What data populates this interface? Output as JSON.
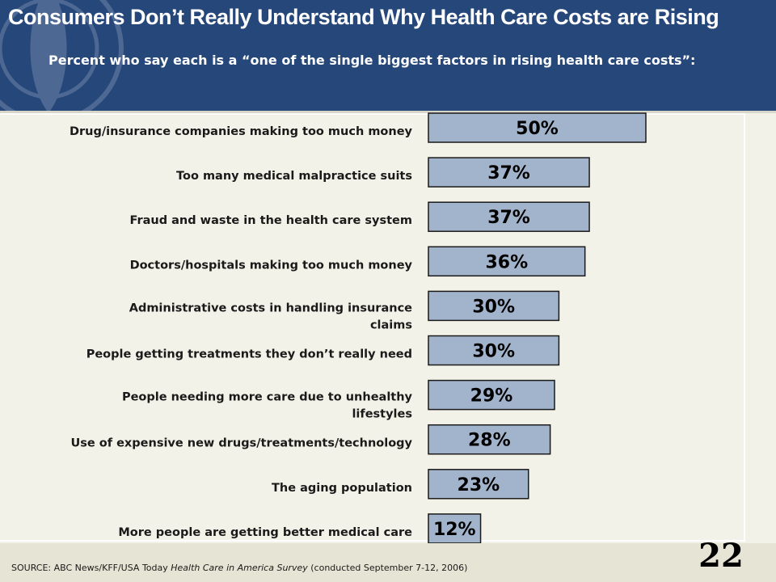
{
  "slide": {
    "title": "Consumers Don’t Really Understand Why Health Care Costs are Rising",
    "subtitle": "Percent who say each is a “one of the single biggest factors in rising health care costs”:",
    "source_prefix": "SOURCE:  ABC News/KFF/USA Today ",
    "source_italic": "Health Care in America Survey",
    "source_suffix": " (conducted  September  7-12, 2006)",
    "page_number": "22"
  },
  "colors": {
    "header": "#26477a",
    "background": "#f3f2e8",
    "bar_fill": "#a2b4cc",
    "bar_stroke": "#1a1a1a"
  },
  "chart_data": {
    "type": "bar",
    "orientation": "horizontal",
    "title": "",
    "xlabel": "",
    "ylabel": "",
    "xlim": [
      0,
      100
    ],
    "grid": false,
    "legend": "none",
    "categories": [
      "Drug/insurance companies making too much money",
      "Too many medical malpractice suits",
      "Fraud and waste in the health care system",
      "Doctors/hospitals making too much money",
      "Administrative costs in handling insurance claims",
      "People getting treatments they don’t really need",
      "People needing more care due to unhealthy lifestyles",
      "Use of expensive new drugs/treatments/technology",
      "The aging population",
      "More people are getting better medical care"
    ],
    "values": [
      50,
      37,
      37,
      36,
      30,
      30,
      29,
      28,
      23,
      12
    ],
    "value_labels": [
      "50%",
      "37%",
      "37%",
      "36%",
      "30%",
      "30%",
      "29%",
      "28%",
      "23%",
      "12%"
    ]
  }
}
